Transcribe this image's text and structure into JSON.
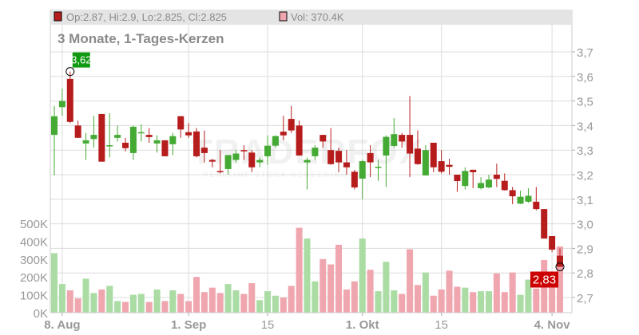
{
  "header": {
    "ohlc_text": "Op:2.87, Hi:2.9, Lo:2.825, Cl:2.825",
    "volume_text": "Vol: 370.4K",
    "title": "3 Monate, 1-Tages-Kerzen",
    "watermark": "TRADERFOX",
    "watermark_sub": "REALTIME STOCK SCREENING"
  },
  "colors": {
    "up": "#44aa33",
    "down": "#b71c1c",
    "volume_up": "#aadca4",
    "volume_down": "#f0a6ae",
    "high_label": "#119911",
    "low_label": "#cc0000"
  },
  "chart_data": {
    "type": "candlestick",
    "title": "3 Monate, 1-Tages-Kerzen",
    "price_axis": {
      "ticks": [
        "3,7",
        "3,6",
        "3,5",
        "3,4",
        "3,3",
        "3,2",
        "3,1",
        "3,0",
        "2,9",
        "2,8",
        "2,7"
      ],
      "ylim": [
        2.64,
        3.72
      ],
      "position": "right"
    },
    "volume_axis": {
      "ticks": [
        "500K",
        "400K",
        "300K",
        "200K",
        "100K",
        "0K"
      ],
      "ylim": [
        0,
        500000
      ],
      "position": "left"
    },
    "x_ticks": [
      {
        "label": "8. Aug",
        "index": 1
      },
      {
        "label": "1. Sep",
        "index": 17
      },
      {
        "label": "15",
        "index": 27
      },
      {
        "label": "1. Okt",
        "index": 39
      },
      {
        "label": "15",
        "index": 49
      },
      {
        "label": "4. Nov",
        "index": 63
      }
    ],
    "grid": true,
    "high_marker": {
      "label": "3,62",
      "index": 2,
      "value": 3.62
    },
    "low_marker": {
      "label": "2,83",
      "index": 64,
      "value": 2.825
    },
    "candles": [
      [
        3.362,
        3.48,
        3.197,
        3.438,
        333000
      ],
      [
        3.475,
        3.55,
        3.44,
        3.5,
        160000
      ],
      [
        3.59,
        3.62,
        3.41,
        3.415,
        125000
      ],
      [
        3.4,
        3.42,
        3.35,
        3.35,
        80000
      ],
      [
        3.327,
        3.37,
        3.26,
        3.34,
        190000
      ],
      [
        3.345,
        3.44,
        3.31,
        3.362,
        110000
      ],
      [
        3.447,
        3.447,
        3.253,
        3.253,
        130000
      ],
      [
        3.315,
        3.45,
        3.27,
        3.32,
        150000
      ],
      [
        3.35,
        3.4,
        3.335,
        3.362,
        65000
      ],
      [
        3.33,
        3.35,
        3.295,
        3.308,
        60000
      ],
      [
        3.288,
        3.4,
        3.26,
        3.395,
        100000
      ],
      [
        3.37,
        3.405,
        3.335,
        3.373,
        105000
      ],
      [
        3.362,
        3.39,
        3.33,
        3.353,
        60000
      ],
      [
        3.327,
        3.36,
        3.29,
        3.34,
        130000
      ],
      [
        3.34,
        3.34,
        3.275,
        3.275,
        65000
      ],
      [
        3.324,
        3.37,
        3.28,
        3.357,
        125000
      ],
      [
        3.438,
        3.438,
        3.35,
        3.384,
        105000
      ],
      [
        3.373,
        3.41,
        3.35,
        3.36,
        65000
      ],
      [
        3.376,
        3.39,
        3.27,
        3.275,
        200000
      ],
      [
        3.31,
        3.38,
        3.25,
        3.288,
        115000
      ],
      [
        3.26,
        3.265,
        3.23,
        3.253,
        140000
      ],
      [
        3.215,
        3.3,
        3.205,
        3.21,
        110000
      ],
      [
        3.223,
        3.28,
        3.2,
        3.28,
        160000
      ],
      [
        3.26,
        3.3,
        3.25,
        3.286,
        125000
      ],
      [
        3.3,
        3.32,
        3.26,
        3.295,
        105000
      ],
      [
        3.29,
        3.3,
        3.21,
        3.23,
        165000
      ],
      [
        3.25,
        3.27,
        3.23,
        3.26,
        70000
      ],
      [
        3.275,
        3.36,
        3.24,
        3.318,
        120000
      ],
      [
        3.318,
        3.36,
        3.31,
        3.357,
        95000
      ],
      [
        3.375,
        3.44,
        3.34,
        3.36,
        85000
      ],
      [
        3.427,
        3.48,
        3.37,
        3.38,
        150000
      ],
      [
        3.4,
        3.42,
        3.278,
        3.278,
        475000
      ],
      [
        3.25,
        3.27,
        3.14,
        3.26,
        415000
      ],
      [
        3.275,
        3.32,
        3.26,
        3.31,
        175000
      ],
      [
        3.362,
        3.362,
        3.31,
        3.335,
        300000
      ],
      [
        3.3,
        3.39,
        3.24,
        3.243,
        270000
      ],
      [
        3.297,
        3.31,
        3.21,
        3.25,
        380000
      ],
      [
        3.25,
        3.3,
        3.2,
        3.23,
        130000
      ],
      [
        3.212,
        3.22,
        3.14,
        3.148,
        175000
      ],
      [
        3.184,
        3.26,
        3.1,
        3.255,
        415000
      ],
      [
        3.288,
        3.32,
        3.19,
        3.25,
        240000
      ],
      [
        3.228,
        3.26,
        3.175,
        3.232,
        120000
      ],
      [
        3.278,
        3.36,
        3.15,
        3.354,
        285000
      ],
      [
        3.317,
        3.43,
        3.31,
        3.365,
        125000
      ],
      [
        3.362,
        3.37,
        3.31,
        3.335,
        105000
      ],
      [
        3.362,
        3.52,
        3.19,
        3.286,
        355000
      ],
      [
        3.306,
        3.38,
        3.24,
        3.243,
        155000
      ],
      [
        3.197,
        3.32,
        3.197,
        3.3,
        225000
      ],
      [
        3.33,
        3.33,
        3.21,
        3.23,
        95000
      ],
      [
        3.255,
        3.3,
        3.205,
        3.212,
        130000
      ],
      [
        3.24,
        3.265,
        3.2,
        3.232,
        235000
      ],
      [
        3.2,
        3.2,
        3.13,
        3.174,
        145000
      ],
      [
        3.154,
        3.23,
        3.14,
        3.215,
        140000
      ],
      [
        3.22,
        3.22,
        3.145,
        3.21,
        115000
      ],
      [
        3.145,
        3.19,
        3.14,
        3.166,
        120000
      ],
      [
        3.148,
        3.2,
        3.145,
        3.18,
        120000
      ],
      [
        3.2,
        3.245,
        3.15,
        3.183,
        220000
      ],
      [
        3.175,
        3.205,
        3.135,
        3.137,
        115000
      ],
      [
        3.137,
        3.15,
        3.08,
        3.112,
        225000
      ],
      [
        3.082,
        3.135,
        3.08,
        3.11,
        100000
      ],
      [
        3.09,
        3.145,
        3.085,
        3.114,
        185000
      ],
      [
        3.09,
        3.15,
        3.055,
        3.06,
        135000
      ],
      [
        3.06,
        3.06,
        2.94,
        2.94,
        295000
      ],
      [
        2.95,
        2.95,
        2.885,
        2.895,
        230000
      ],
      [
        2.87,
        2.9,
        2.825,
        2.825,
        370400
      ]
    ]
  }
}
